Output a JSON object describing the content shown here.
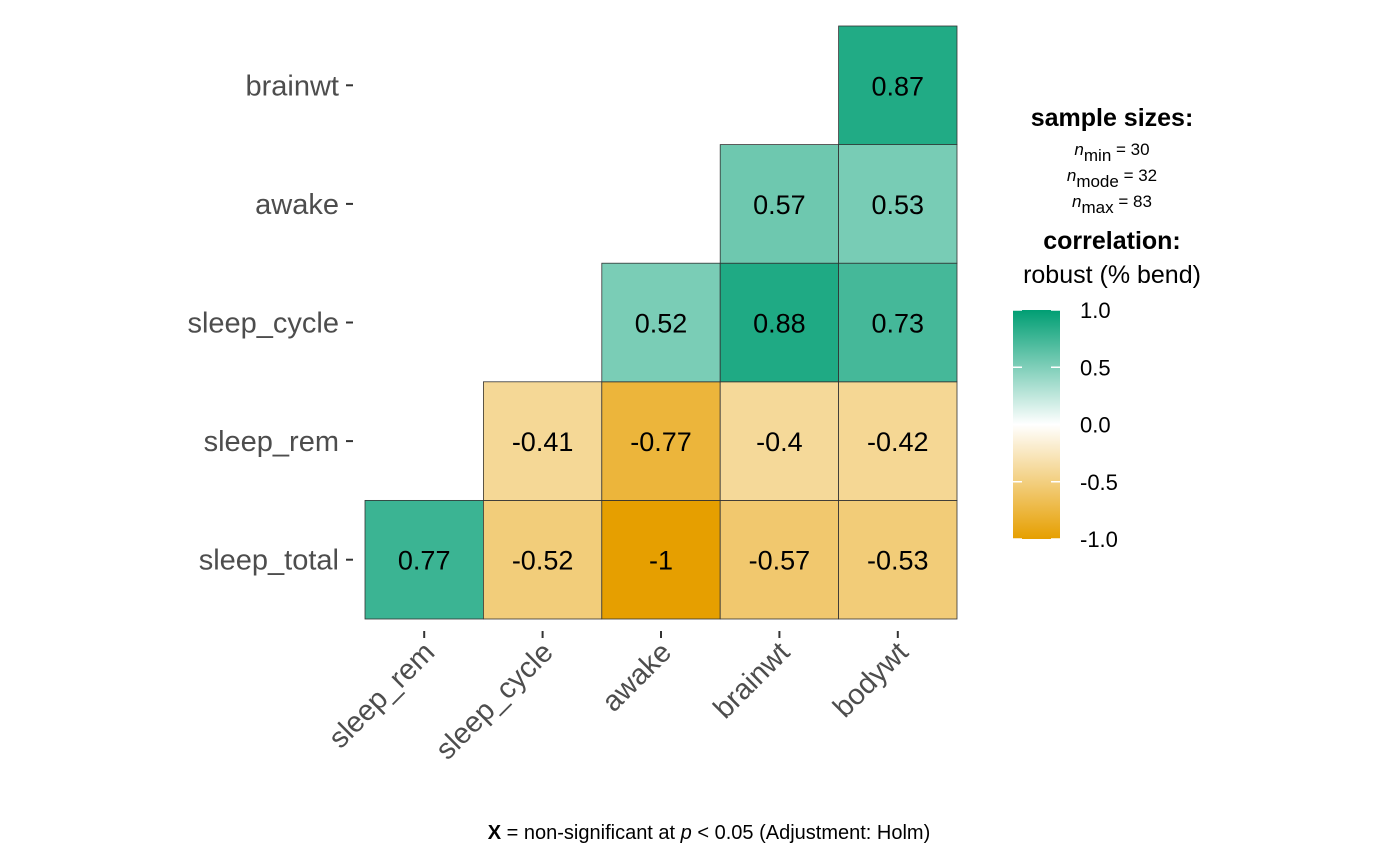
{
  "chart_data": {
    "type": "heatmap",
    "rows": [
      "sleep_total",
      "sleep_rem",
      "sleep_cycle",
      "awake",
      "brainwt"
    ],
    "columns": [
      "sleep_rem",
      "sleep_cycle",
      "awake",
      "brainwt",
      "bodywt"
    ],
    "cells": [
      {
        "row": "sleep_total",
        "col": "sleep_rem",
        "value": 0.77,
        "label": "0.77"
      },
      {
        "row": "sleep_total",
        "col": "sleep_cycle",
        "value": -0.52,
        "label": "-0.52"
      },
      {
        "row": "sleep_total",
        "col": "awake",
        "value": -1,
        "label": "-1"
      },
      {
        "row": "sleep_total",
        "col": "brainwt",
        "value": -0.57,
        "label": "-0.57"
      },
      {
        "row": "sleep_total",
        "col": "bodywt",
        "value": -0.53,
        "label": "-0.53"
      },
      {
        "row": "sleep_rem",
        "col": "sleep_cycle",
        "value": -0.41,
        "label": "-0.41"
      },
      {
        "row": "sleep_rem",
        "col": "awake",
        "value": -0.77,
        "label": "-0.77"
      },
      {
        "row": "sleep_rem",
        "col": "brainwt",
        "value": -0.4,
        "label": "-0.4"
      },
      {
        "row": "sleep_rem",
        "col": "bodywt",
        "value": -0.42,
        "label": "-0.42"
      },
      {
        "row": "sleep_cycle",
        "col": "awake",
        "value": 0.52,
        "label": "0.52"
      },
      {
        "row": "sleep_cycle",
        "col": "brainwt",
        "value": 0.88,
        "label": "0.88"
      },
      {
        "row": "sleep_cycle",
        "col": "bodywt",
        "value": 0.73,
        "label": "0.73"
      },
      {
        "row": "awake",
        "col": "brainwt",
        "value": 0.57,
        "label": "0.57"
      },
      {
        "row": "awake",
        "col": "bodywt",
        "value": 0.53,
        "label": "0.53"
      },
      {
        "row": "brainwt",
        "col": "bodywt",
        "value": 0.87,
        "label": "0.87"
      }
    ],
    "legend": {
      "placement": "right",
      "sample_sizes_title": "sample sizes:",
      "n_symbol": "n",
      "n_entries": [
        {
          "sub": "min",
          "text": " = 30"
        },
        {
          "sub": "mode",
          "text": " = 32"
        },
        {
          "sub": "max",
          "text": " = 83"
        }
      ],
      "correlation_title": "correlation:",
      "correlation_method": "robust (% bend)",
      "scale_range": [
        -1,
        1
      ],
      "ticks": [
        {
          "value": 1,
          "label": "1.0"
        },
        {
          "value": 0.5,
          "label": "0.5"
        },
        {
          "value": 0,
          "label": "0.0"
        },
        {
          "value": -0.5,
          "label": "-0.5"
        },
        {
          "value": -1,
          "label": "-1.0"
        }
      ]
    },
    "colors": {
      "high": "#009E73",
      "mid": "#FFFFFF",
      "low": "#E69F00",
      "cell_border": "#333333"
    },
    "caption": {
      "bold": "X",
      "part1": " = non-significant at ",
      "italic": "p",
      "part2": " < 0.05 (Adjustment: Holm)"
    }
  }
}
